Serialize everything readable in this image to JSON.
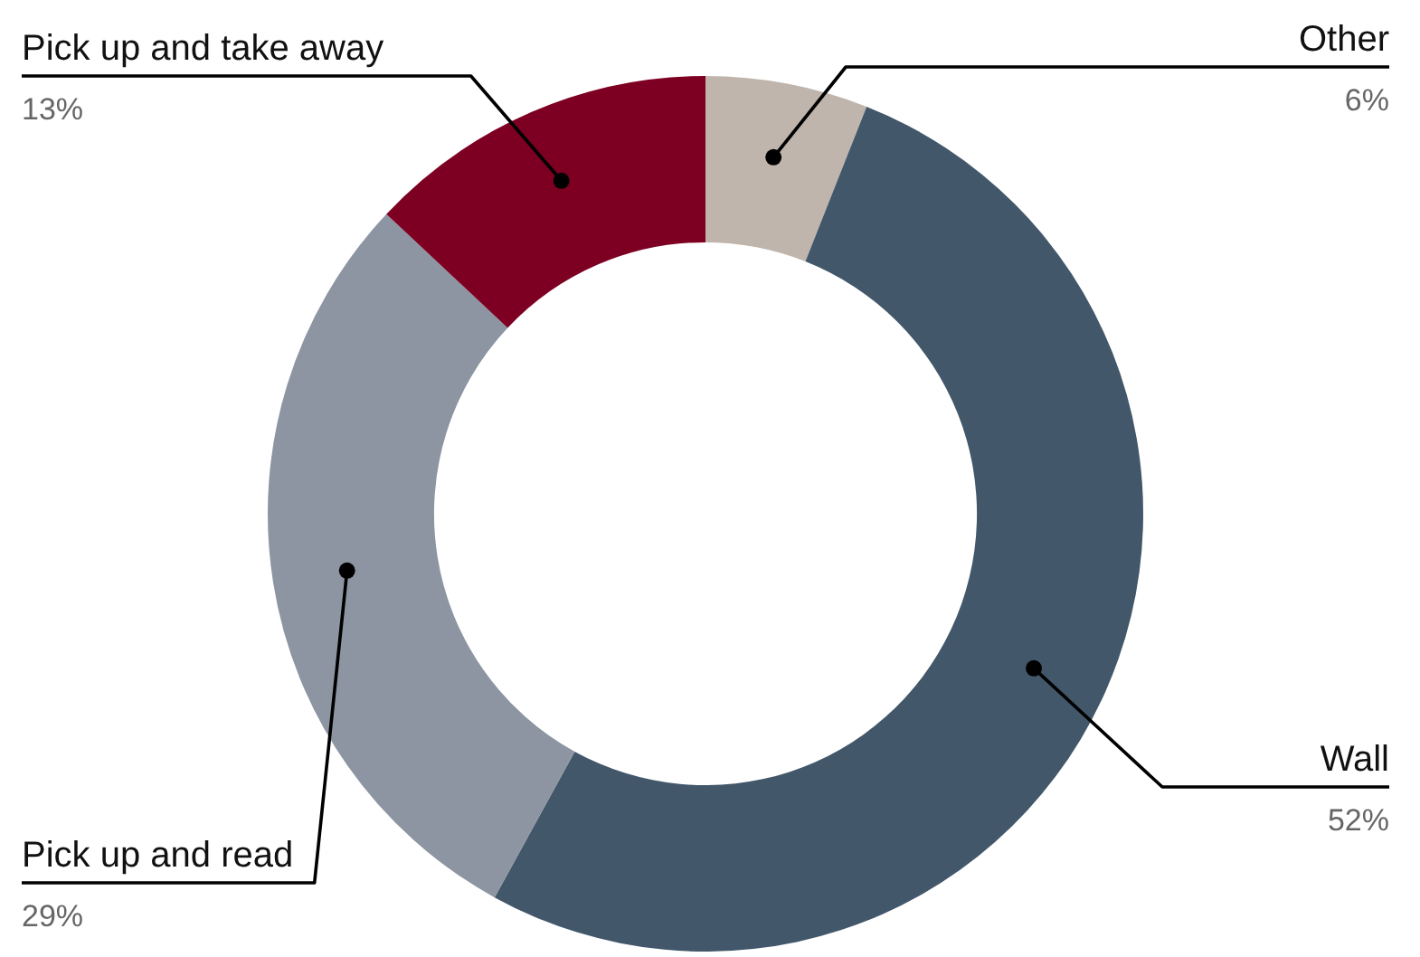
{
  "chart_data": {
    "type": "donut",
    "categories": [
      "Other",
      "Wall",
      "Pick up and read",
      "Pick up and take away"
    ],
    "values": [
      6,
      52,
      29,
      13
    ],
    "colors": [
      "#bfb5ac",
      "#42576a",
      "#8c95a1",
      "#7d0022"
    ],
    "value_labels": [
      "6%",
      "52%",
      "29%",
      "13%"
    ],
    "legend": false
  }
}
